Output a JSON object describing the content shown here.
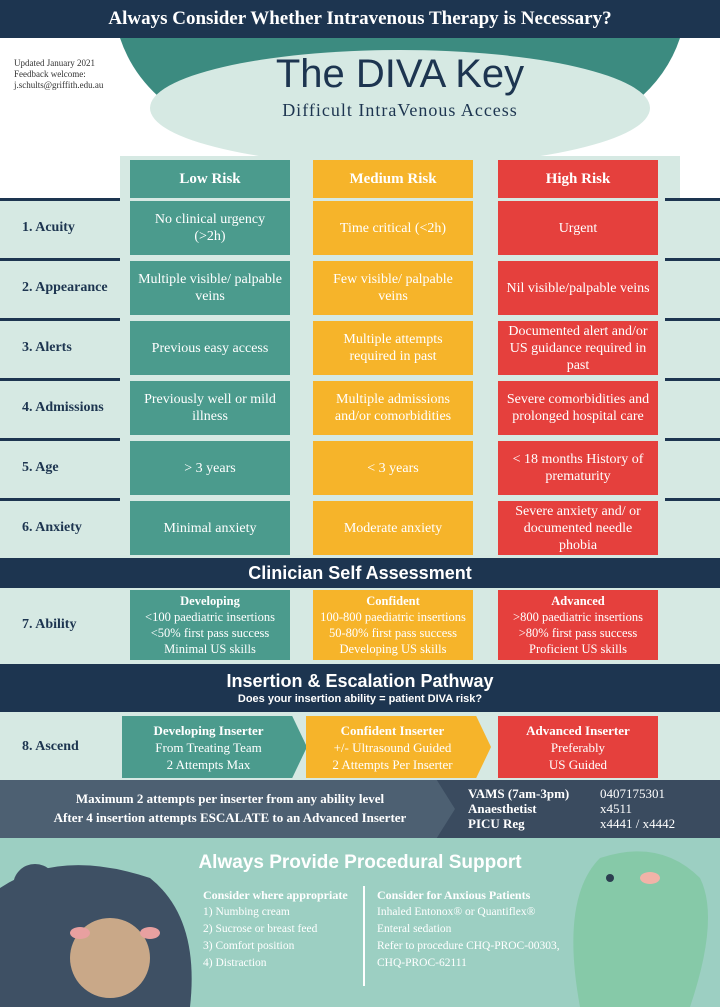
{
  "banner": "Always Consider Whether Intravenous Therapy is Necessary?",
  "meta": [
    "Updated January 2021",
    "Feedback welcome:",
    "j.schults@griffith.edu.au"
  ],
  "title": "The DIVA Key",
  "subtitle": "Difficult IntraVenous Access",
  "columns": [
    "Low Risk",
    "Medium Risk",
    "High Risk"
  ],
  "rows": [
    {
      "label": "1. Acuity",
      "cells": [
        "No clinical urgency (>2h)",
        "Time critical (<2h)",
        "Urgent"
      ]
    },
    {
      "label": "2. Appearance",
      "cells": [
        "Multiple visible/ palpable veins",
        "Few visible/ palpable veins",
        "Nil visible/palpable veins"
      ]
    },
    {
      "label": "3. Alerts",
      "cells": [
        "Previous easy access",
        "Multiple attempts required in past",
        "Documented alert and/or US guidance required in past"
      ]
    },
    {
      "label": "4. Admissions",
      "cells": [
        "Previously well or mild illness",
        "Multiple admissions and/or comorbidities",
        "Severe comorbidities and prolonged hospital care"
      ]
    },
    {
      "label": "5. Age",
      "cells": [
        "> 3 years",
        "< 3 years",
        "< 18 months History of prematurity"
      ]
    },
    {
      "label": "6. Anxiety",
      "cells": [
        "Minimal anxiety",
        "Moderate anxiety",
        "Severe anxiety and/ or documented needle phobia"
      ]
    }
  ],
  "self_assessment": {
    "heading": "Clinician Self Assessment",
    "label": "7. Ability",
    "cells": [
      {
        "title": "Developing",
        "lines": [
          "<100 paediatric insertions",
          "<50% first pass success",
          "Minimal US skills"
        ]
      },
      {
        "title": "Confident",
        "lines": [
          "100-800 paediatric insertions",
          "50-80% first pass success",
          "Developing US skills"
        ]
      },
      {
        "title": "Advanced",
        "lines": [
          ">800 paediatric insertions",
          ">80% first pass success",
          "Proficient US skills"
        ]
      }
    ]
  },
  "pathway": {
    "heading": "Insertion & Escalation Pathway",
    "question": "Does your insertion ability = patient DIVA risk?",
    "label": "8. Ascend",
    "cells": [
      {
        "title": "Developing Inserter",
        "lines": [
          "From Treating Team",
          "2 Attempts Max"
        ]
      },
      {
        "title": "Confident Inserter",
        "lines": [
          "+/- Ultrasound Guided",
          "2 Attempts Per Inserter"
        ]
      },
      {
        "title": "Advanced Inserter",
        "lines": [
          "Preferably",
          "US Guided"
        ]
      }
    ]
  },
  "escalation": {
    "lines": [
      "Maximum 2 attempts per inserter from any ability level",
      "After 4 insertion attempts ESCALATE to an Advanced Inserter"
    ],
    "contacts": [
      {
        "name": "VAMS (7am-3pm)",
        "number": "0407175301"
      },
      {
        "name": "Anaesthetist",
        "number": "x4511"
      },
      {
        "name": "PICU Reg",
        "number": "x4441 / x4442"
      }
    ]
  },
  "support": {
    "heading": "Always Provide Procedural Support",
    "left": {
      "title": "Consider where appropriate",
      "items": [
        "1) Numbing cream",
        "2) Sucrose or breast feed",
        "3) Comfort position",
        "4) Distraction"
      ]
    },
    "right": {
      "title": "Consider for Anxious Patients",
      "items": [
        "Inhaled Entonox® or Quantiflex®",
        "Enteral sedation",
        "Refer to procedure CHQ-PROC-00303,",
        "CHQ-PROC-62111"
      ]
    }
  }
}
